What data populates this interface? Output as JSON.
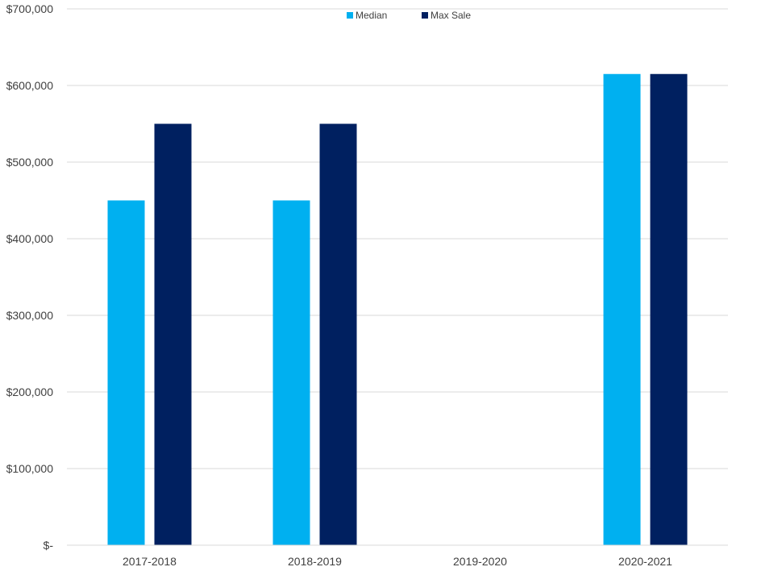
{
  "chart_data": {
    "type": "bar",
    "categories": [
      "2017-2018",
      "2018-2019",
      "2019-2020",
      "2020-2021"
    ],
    "series": [
      {
        "name": "Median",
        "color": "#00B0F0",
        "values": [
          450000,
          450000,
          null,
          615000
        ]
      },
      {
        "name": "Max Sale",
        "color": "#002060",
        "values": [
          550000,
          550000,
          null,
          615000
        ]
      }
    ],
    "y_ticks": [
      "$-",
      "$100,000",
      "$200,000",
      "$300,000",
      "$400,000",
      "$500,000",
      "$600,000",
      "$700,000"
    ],
    "ylim": [
      0,
      700000
    ],
    "y_tick_step": 100000,
    "grid": true,
    "legend_position": "top-center"
  }
}
